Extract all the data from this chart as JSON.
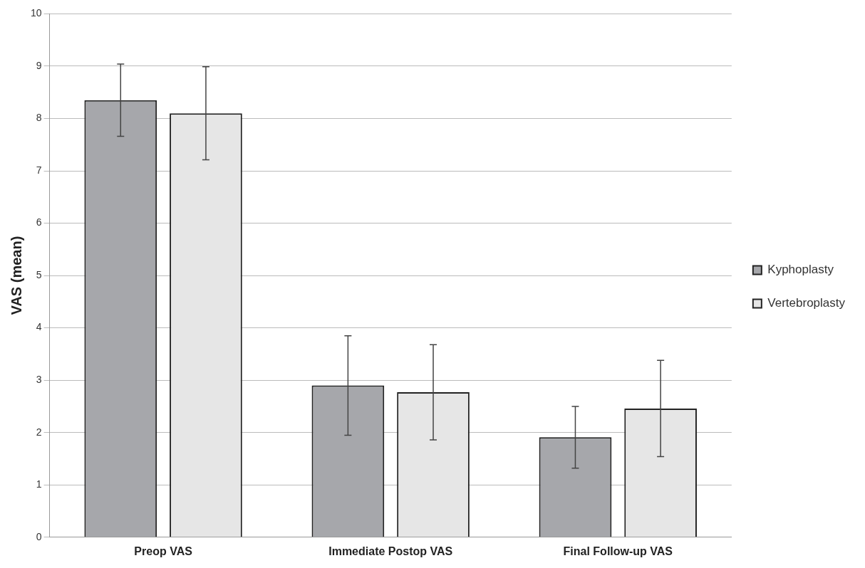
{
  "chart_data": {
    "type": "bar",
    "ylabel": "VAS (mean)",
    "categories": [
      "Preop VAS",
      "Immediate Postop VAS",
      "Final Follow-up VAS"
    ],
    "series": [
      {
        "name": "Kyphoplasty",
        "color": "#a6a7ab",
        "values": [
          8.35,
          2.9,
          1.91
        ],
        "errors": [
          0.69,
          0.95,
          0.59
        ]
      },
      {
        "name": "Vertebroplasty",
        "color": "#e6e6e6",
        "values": [
          8.1,
          2.77,
          2.46
        ],
        "errors": [
          0.89,
          0.91,
          0.92
        ]
      }
    ],
    "ylim": [
      0,
      10
    ],
    "yticks": [
      0,
      1,
      2,
      3,
      4,
      5,
      6,
      7,
      8,
      9,
      10
    ],
    "grid": "y",
    "legend": "right"
  }
}
